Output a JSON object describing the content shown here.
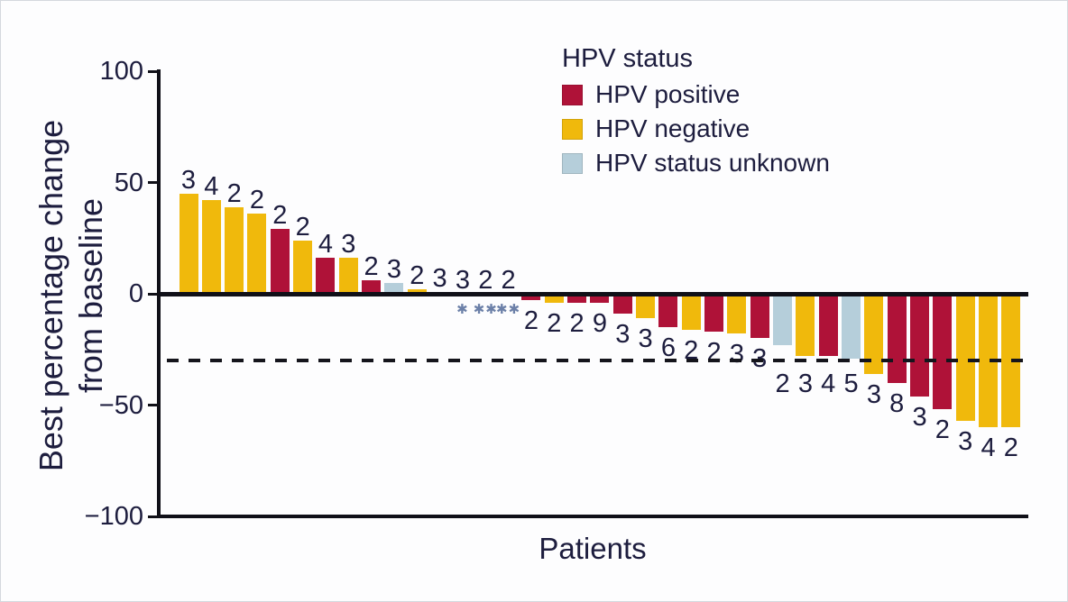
{
  "chart_data": {
    "type": "bar",
    "title": "",
    "xlabel": "Patients",
    "ylabel": "Best percentage change from baseline",
    "ylabel_lines": [
      "Best percentage change",
      "from baseline"
    ],
    "ylim": [
      -100,
      100
    ],
    "yticks": [
      100,
      50,
      0,
      -50,
      -100
    ],
    "ytick_labels": [
      "100",
      "50",
      "0",
      "−50",
      "−100"
    ],
    "grid": false,
    "reference_line_y": -30,
    "reference_line_style": "dashed",
    "legend_title": "HPV status",
    "legend_position": "top-center",
    "groups": [
      {
        "name": "HPV positive",
        "color": "#AF1238"
      },
      {
        "name": "HPV negative",
        "color": "#F0B90C"
      },
      {
        "name": "HPV status unknown",
        "color": "#B5CEDA"
      }
    ],
    "ink_color": "#1d1d3e",
    "axis_color": "#101018",
    "zero_mark_color": "#6c80a8",
    "bars": [
      {
        "value": 45,
        "group": "HPV negative",
        "label": "3"
      },
      {
        "value": 42,
        "group": "HPV negative",
        "label": "4"
      },
      {
        "value": 39,
        "group": "HPV negative",
        "label": "2"
      },
      {
        "value": 36,
        "group": "HPV negative",
        "label": "2"
      },
      {
        "value": 29,
        "group": "HPV positive",
        "label": "2"
      },
      {
        "value": 24,
        "group": "HPV negative",
        "label": "2"
      },
      {
        "value": 16,
        "group": "HPV positive",
        "label": "4"
      },
      {
        "value": 16,
        "group": "HPV negative",
        "label": "3"
      },
      {
        "value": 6,
        "group": "HPV positive",
        "label": "2"
      },
      {
        "value": 5,
        "group": "HPV status unknown",
        "label": "3"
      },
      {
        "value": 2,
        "group": "HPV negative",
        "label": "2"
      },
      {
        "value": 1,
        "group": "HPV positive",
        "label": "3"
      },
      {
        "value": 0,
        "group": "none",
        "label": "3",
        "mark": "✱"
      },
      {
        "value": 0,
        "group": "none",
        "label": "2",
        "mark": "✱✱"
      },
      {
        "value": 0,
        "group": "none",
        "label": "2",
        "mark": "✱✱"
      },
      {
        "value": -3,
        "group": "HPV positive",
        "label": "2"
      },
      {
        "value": -4,
        "group": "HPV negative",
        "label": "2"
      },
      {
        "value": -4,
        "group": "HPV positive",
        "label": "2"
      },
      {
        "value": -4,
        "group": "HPV positive",
        "label": "9"
      },
      {
        "value": -9,
        "group": "HPV positive",
        "label": "3"
      },
      {
        "value": -11,
        "group": "HPV negative",
        "label": "3"
      },
      {
        "value": -15,
        "group": "HPV positive",
        "label": "6"
      },
      {
        "value": -16,
        "group": "HPV negative",
        "label": "2"
      },
      {
        "value": -17,
        "group": "HPV positive",
        "label": "2"
      },
      {
        "value": -18,
        "group": "HPV negative",
        "label": "3"
      },
      {
        "value": -20,
        "group": "HPV positive",
        "label": "3"
      },
      {
        "value": -23,
        "group": "HPV status unknown",
        "label": "2"
      },
      {
        "value": -28,
        "group": "HPV negative",
        "label": "3"
      },
      {
        "value": -28,
        "group": "HPV positive",
        "label": "4"
      },
      {
        "value": -29,
        "group": "HPV status unknown",
        "label": "5"
      },
      {
        "value": -36,
        "group": "HPV negative",
        "label": "3"
      },
      {
        "value": -40,
        "group": "HPV positive",
        "label": "8"
      },
      {
        "value": -46,
        "group": "HPV positive",
        "label": "3"
      },
      {
        "value": -52,
        "group": "HPV positive",
        "label": "2"
      },
      {
        "value": -57,
        "group": "HPV negative",
        "label": "3"
      },
      {
        "value": -60,
        "group": "HPV negative",
        "label": "4"
      },
      {
        "value": -60,
        "group": "HPV negative",
        "label": "2"
      }
    ]
  }
}
